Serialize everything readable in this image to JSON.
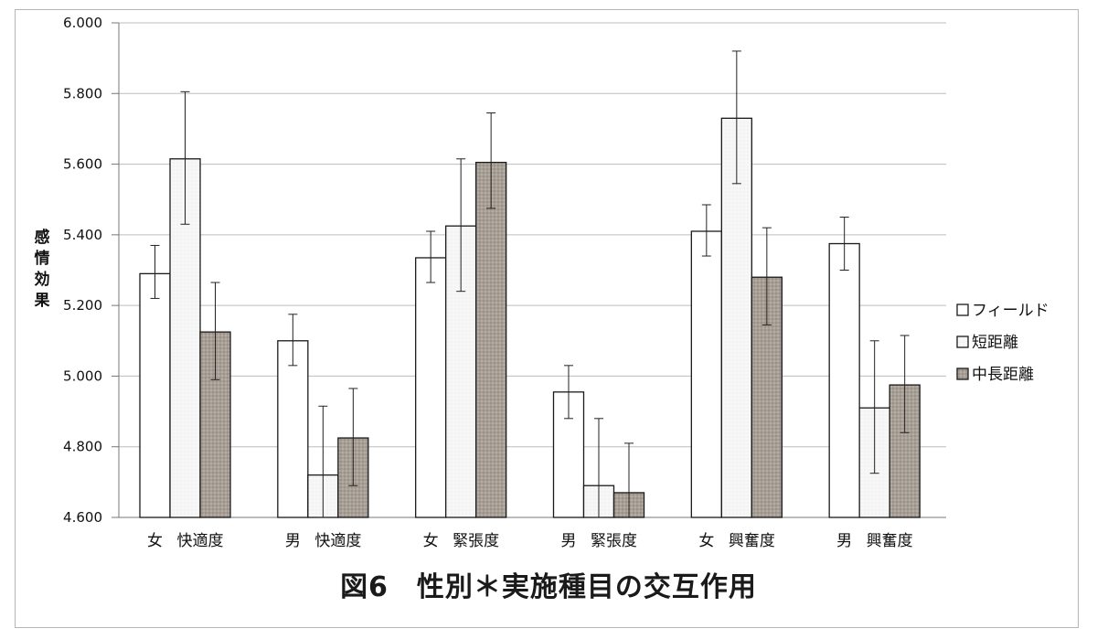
{
  "chart_data": {
    "type": "bar",
    "ylabel": "感情効果",
    "ylim": [
      4.6,
      6.0
    ],
    "yticks": [
      "6.000",
      "5.800",
      "5.600",
      "5.400",
      "5.200",
      "5.000",
      "4.800",
      "4.600"
    ],
    "ytick_values": [
      6.0,
      5.8,
      5.6,
      5.4,
      5.2,
      5.0,
      4.8,
      4.6
    ],
    "grid": true,
    "legend_position": "right",
    "groups": [
      {
        "gender": "女",
        "item": "快適度"
      },
      {
        "gender": "男",
        "item": "快適度"
      },
      {
        "gender": "女",
        "item": "緊張度"
      },
      {
        "gender": "男",
        "item": "緊張度"
      },
      {
        "gender": "女",
        "item": "興奮度"
      },
      {
        "gender": "男",
        "item": "興奮度"
      }
    ],
    "series": [
      {
        "name": "フィールド",
        "color": "#ffffff",
        "values": [
          5.29,
          5.1,
          5.335,
          4.955,
          5.41,
          5.375
        ],
        "error_low": [
          5.22,
          5.03,
          5.265,
          4.88,
          5.34,
          5.3
        ],
        "error_high": [
          5.37,
          5.175,
          5.41,
          5.03,
          5.485,
          5.45
        ]
      },
      {
        "name": "短距離",
        "color": "#f4f4f4",
        "values": [
          5.615,
          4.72,
          5.425,
          4.69,
          5.73,
          4.91
        ],
        "error_low": [
          5.43,
          4.6,
          5.24,
          4.6,
          5.545,
          4.725
        ],
        "error_high": [
          5.805,
          4.915,
          5.615,
          4.88,
          5.92,
          5.1
        ]
      },
      {
        "name": "中長距離",
        "color": "#a39b91",
        "values": [
          5.125,
          4.825,
          5.605,
          4.67,
          5.28,
          4.975
        ],
        "error_low": [
          4.99,
          4.69,
          5.475,
          4.6,
          5.145,
          4.84
        ],
        "error_high": [
          5.265,
          4.965,
          5.745,
          4.81,
          5.42,
          5.115
        ]
      }
    ]
  },
  "caption": "図6　性別＊実施種目の交互作用"
}
